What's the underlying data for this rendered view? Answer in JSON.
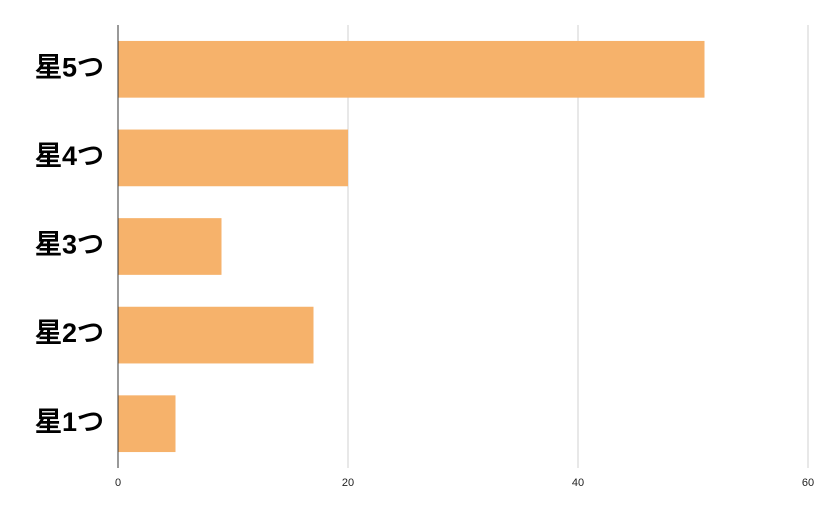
{
  "chart_data": {
    "type": "bar",
    "orientation": "horizontal",
    "categories": [
      "星5つ",
      "星4つ",
      "星3つ",
      "星2つ",
      "星1つ"
    ],
    "values": [
      51,
      20,
      9,
      17,
      5
    ],
    "color": "#f6b26b",
    "xlim": [
      0,
      60
    ],
    "xticks": [
      0,
      20,
      40,
      60
    ],
    "grid": true
  }
}
